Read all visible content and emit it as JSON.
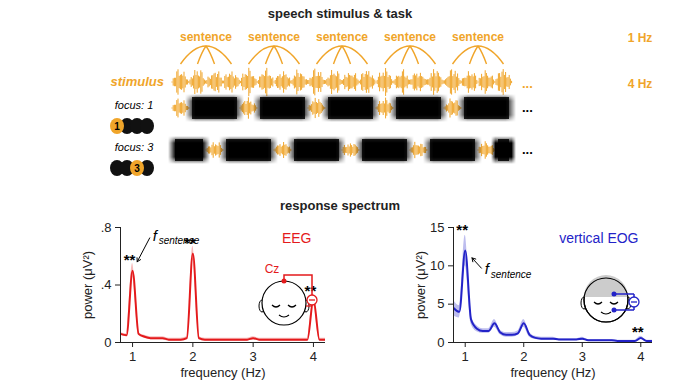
{
  "panels": {
    "stimulus": {
      "title": "speech stimulus & task",
      "sentences": [
        "sentence",
        "sentence",
        "sentence",
        "sentence",
        "sentence"
      ],
      "sentence_rate": "1 Hz",
      "stimulus_label": "stimulus",
      "syllable_rate": "4 Hz",
      "ellipsis": "...",
      "rows": [
        {
          "label": "focus: 1",
          "position": 1
        },
        {
          "label": "focus: 3",
          "position": 3
        }
      ]
    },
    "response": {
      "title": "response spectrum",
      "electrode_label": "Cz"
    }
  },
  "chart_data": [
    {
      "type": "line",
      "title": "EEG",
      "color": "#e41a1c",
      "x_label": "frequency (Hz)",
      "y_label": "power (μV²)",
      "x": [
        0.8,
        0.9,
        1.0,
        1.1,
        1.2,
        1.3,
        1.4,
        1.5,
        1.6,
        1.7,
        1.8,
        1.9,
        2.0,
        2.1,
        2.2,
        2.3,
        2.4,
        2.5,
        2.6,
        2.7,
        2.8,
        2.9,
        3.0,
        3.1,
        3.2,
        3.3,
        3.4,
        3.5,
        3.6,
        3.7,
        3.8,
        3.9,
        4.0,
        4.1,
        4.2
      ],
      "values": [
        0.06,
        0.05,
        0.5,
        0.06,
        0.04,
        0.03,
        0.03,
        0.03,
        0.02,
        0.02,
        0.02,
        0.03,
        0.62,
        0.03,
        0.02,
        0.02,
        0.02,
        0.02,
        0.02,
        0.02,
        0.02,
        0.02,
        0.03,
        0.02,
        0.02,
        0.02,
        0.02,
        0.02,
        0.02,
        0.02,
        0.02,
        0.02,
        0.3,
        0.02,
        0.02
      ],
      "error": [
        0.01,
        0.01,
        0.05,
        0.01,
        0.01,
        0.01,
        0.01,
        0.01,
        0.01,
        0.01,
        0.01,
        0.01,
        0.05,
        0.01,
        0.01,
        0.01,
        0.01,
        0.01,
        0.01,
        0.01,
        0.01,
        0.01,
        0.01,
        0.01,
        0.01,
        0.01,
        0.01,
        0.01,
        0.01,
        0.01,
        0.01,
        0.01,
        0.04,
        0.01,
        0.01
      ],
      "xlim": [
        0.8,
        4.2
      ],
      "xticks": [
        1,
        2,
        3,
        4
      ],
      "ylim": [
        0,
        0.8
      ],
      "yticks": [
        0,
        {
          "value": 0.4,
          "label": ".4"
        },
        {
          "value": 0.8,
          "label": ".8"
        }
      ],
      "annotations": [
        {
          "text": "**",
          "x": 1,
          "y": 0.57
        },
        {
          "text": "**",
          "x": 2,
          "y": 0.69
        },
        {
          "text": "**",
          "x": 4,
          "y": 0.36
        },
        {
          "text": "f",
          "subscript": "sentence",
          "x": 1.3,
          "y": 0.74,
          "points_to": 1
        }
      ]
    },
    {
      "type": "line",
      "title": "vertical EOG",
      "color": "#2323c8",
      "x_label": "frequency (Hz)",
      "y_label": "power (μV²)",
      "x": [
        0.8,
        0.9,
        1.0,
        1.1,
        1.2,
        1.3,
        1.4,
        1.5,
        1.6,
        1.7,
        1.8,
        1.9,
        2.0,
        2.1,
        2.2,
        2.3,
        2.4,
        2.5,
        2.6,
        2.7,
        2.8,
        2.9,
        3.0,
        3.1,
        3.2,
        3.3,
        3.4,
        3.5,
        3.6,
        3.7,
        3.8,
        3.9,
        4.0,
        4.1,
        4.2
      ],
      "values": [
        4.5,
        4.0,
        12.0,
        3.0,
        1.8,
        1.5,
        1.5,
        2.5,
        1.3,
        1.0,
        1.0,
        1.2,
        2.5,
        1.0,
        0.6,
        0.5,
        0.5,
        0.5,
        0.4,
        0.4,
        0.4,
        0.4,
        0.5,
        0.3,
        0.3,
        0.3,
        0.3,
        0.3,
        0.2,
        0.2,
        0.2,
        0.2,
        0.6,
        0.2,
        0.2
      ],
      "error": [
        1.0,
        0.8,
        2.0,
        0.6,
        0.4,
        0.3,
        0.3,
        0.5,
        0.3,
        0.3,
        0.3,
        0.3,
        0.5,
        0.3,
        0.2,
        0.2,
        0.2,
        0.2,
        0.1,
        0.1,
        0.1,
        0.1,
        0.2,
        0.1,
        0.1,
        0.1,
        0.1,
        0.1,
        0.1,
        0.1,
        0.1,
        0.1,
        0.2,
        0.1,
        0.1
      ],
      "xlim": [
        0.8,
        4.2
      ],
      "xticks": [
        1,
        2,
        3,
        4
      ],
      "ylim": [
        0,
        15
      ],
      "yticks": [
        0,
        5,
        10,
        15
      ],
      "annotations": [
        {
          "text": "**",
          "x": 1,
          "y": 14.6
        },
        {
          "text": "**",
          "x": 4,
          "y": 1.4
        },
        {
          "text": "f",
          "subscript": "sentence",
          "x": 1.3,
          "y": 9.5,
          "points_to": 1
        }
      ]
    }
  ]
}
